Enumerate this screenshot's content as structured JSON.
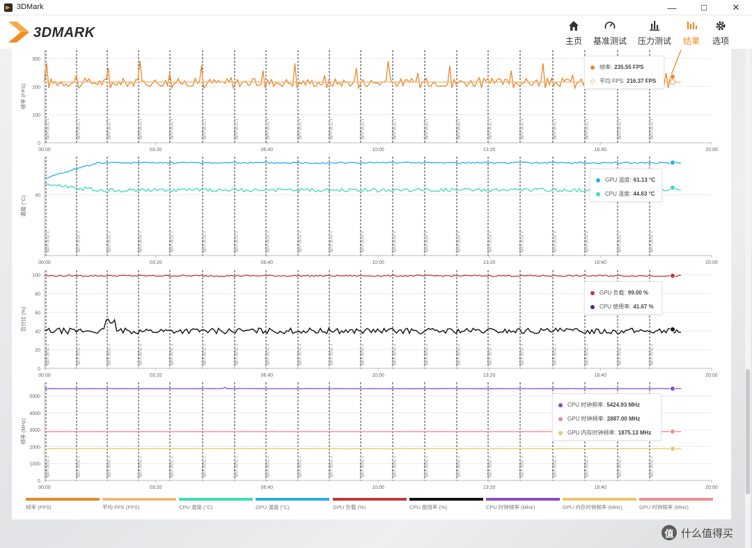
{
  "window": {
    "title": "3DMark",
    "minimize": "—",
    "maximize": "☐",
    "close": "✕"
  },
  "brand": {
    "name": "3DMARK"
  },
  "nav": [
    {
      "label": "主页",
      "icon": "home-icon"
    },
    {
      "label": "基准测试",
      "icon": "gauge-icon"
    },
    {
      "label": "压力测试",
      "icon": "bar-chart-icon"
    },
    {
      "label": "结果",
      "icon": "results-icon",
      "active": true
    },
    {
      "label": "选项",
      "icon": "gear-icon"
    }
  ],
  "colors": {
    "accent": "#f28a1e",
    "fps": "#e8872a",
    "avg_fps": "#f3b57a",
    "cpu_temp": "#3ddcb6",
    "gpu_temp": "#29aee6",
    "gpu_load": "#c0393b",
    "cpu_usage": "#111111",
    "cpu_clock": "#8a4cc5",
    "gpu_clock": "#e88f8f",
    "gpu_mem_clock": "#e6c86a"
  },
  "x_ticks": [
    "00:00",
    "03:20",
    "06:40",
    "10:00",
    "13:20",
    "16:40",
    "20:00"
  ],
  "marker_label": "循环测试 1",
  "chart_data": [
    {
      "type": "line",
      "ylabel": "帧率 (FPS)",
      "yticks": [
        "0",
        "100",
        "200",
        "300"
      ],
      "ylim": [
        0,
        330
      ],
      "xlim": [
        0,
        20
      ],
      "series": [
        {
          "name": "帧率",
          "value": "235.55 FPS",
          "baseline": 215,
          "noise": 25,
          "spikes": true,
          "end": 330
        },
        {
          "name": "平均 FPS",
          "value": "216.37 FPS",
          "baseline": 216.37,
          "noise": 0
        }
      ]
    },
    {
      "type": "line",
      "ylabel": "温度 (°C)",
      "yticks": [
        "40"
      ],
      "ylim": [
        0,
        65
      ],
      "xlim": [
        0,
        20
      ],
      "series": [
        {
          "name": "GPU 温度",
          "value": "61.13 °C",
          "start": 51,
          "baseline": 61,
          "noise": 0.5
        },
        {
          "name": "CPU 温度",
          "value": "44.63 °C",
          "start": 47,
          "baseline": 43,
          "noise": 1.2
        }
      ]
    },
    {
      "type": "line",
      "ylabel": "百分比 (%)",
      "yticks": [
        "0",
        "20",
        "40",
        "60",
        "80",
        "100"
      ],
      "ylim": [
        0,
        105
      ],
      "xlim": [
        0,
        20
      ],
      "series": [
        {
          "name": "GPU 负载",
          "value": "99.00 %",
          "baseline": 99,
          "noise": 0.8
        },
        {
          "name": "CPU 使用率",
          "value": "41.67 %",
          "baseline": 40,
          "noise": 3
        }
      ]
    },
    {
      "type": "line",
      "ylabel": "频率 (MHz)",
      "yticks": [
        "0",
        "1000",
        "2000",
        "3000",
        "4000",
        "5000"
      ],
      "ylim": [
        0,
        5800
      ],
      "xlim": [
        0,
        20
      ],
      "series": [
        {
          "name": "CPU 时钟频率",
          "value": "5424.93 MHz",
          "baseline": 5425,
          "noise": 5
        },
        {
          "name": "GPU 时钟频率",
          "value": "2887.00 MHz",
          "baseline": 2887,
          "noise": 3
        },
        {
          "name": "GPU 内存时钟频率",
          "value": "1875.13 MHz",
          "baseline": 1875,
          "noise": 2
        }
      ]
    }
  ],
  "legend": [
    {
      "label": "帧率 (FPS)",
      "color": "#e8872a"
    },
    {
      "label": "平均 FPS (FPS)",
      "color": "#f3b57a"
    },
    {
      "label": "CPU 温度 (°C)",
      "color": "#3ddcb6"
    },
    {
      "label": "GPU 温度 (°C)",
      "color": "#29aee6"
    },
    {
      "label": "GPU 负载 (%)",
      "color": "#c0393b"
    },
    {
      "label": "CPU 使用率 (%)",
      "color": "#111111"
    },
    {
      "label": "CPU 时钟频率 (MHz)",
      "color": "#8a4cc5"
    },
    {
      "label": "GPU 内存时钟频率 (MHz)",
      "color": "#e6c86a"
    },
    {
      "label": "GPU 时钟频率 (MHz)",
      "color": "#e88f8f"
    }
  ],
  "watermark": {
    "icon": "值",
    "text": "什么值得买"
  }
}
